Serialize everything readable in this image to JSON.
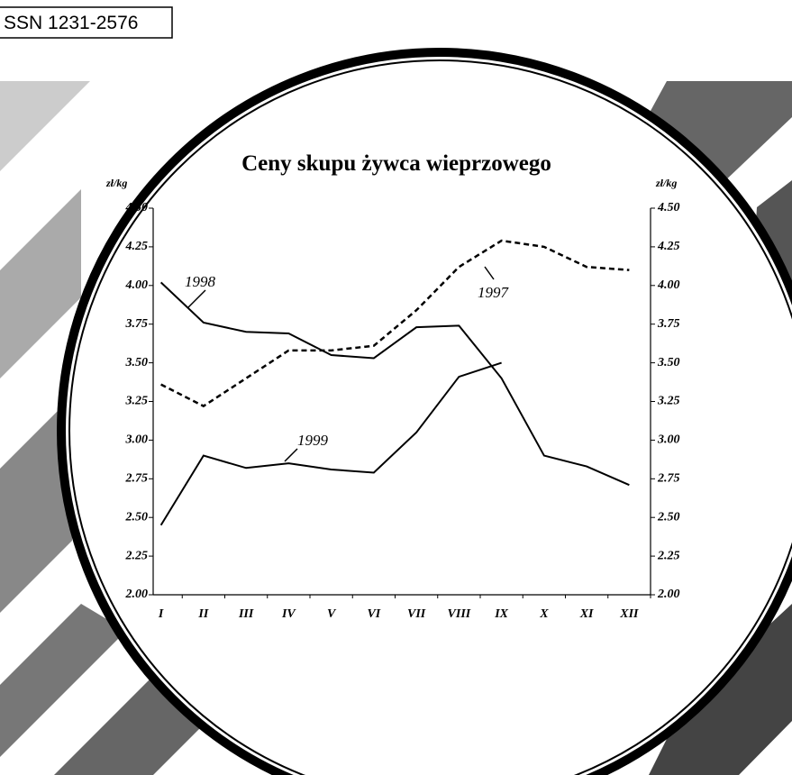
{
  "issn": "SSN 1231-2576",
  "chart_data": {
    "type": "line",
    "title": "Ceny skupu żywca wieprzowego",
    "y_label": "zł/kg",
    "y2_label": "zł/kg",
    "categories": [
      "I",
      "II",
      "III",
      "IV",
      "V",
      "VI",
      "VII",
      "VIII",
      "IX",
      "X",
      "XI",
      "XII"
    ],
    "series": [
      {
        "name": "1998",
        "color": "#000000",
        "dash": "solid",
        "values": [
          4.02,
          3.76,
          3.7,
          3.69,
          3.55,
          3.53,
          3.73,
          3.74,
          3.4,
          2.9,
          2.83,
          2.71
        ]
      },
      {
        "name": "1997",
        "color": "#000000",
        "dash": "dashed",
        "values": [
          3.36,
          3.22,
          3.4,
          3.58,
          3.58,
          3.61,
          3.84,
          4.12,
          4.29,
          4.25,
          4.12,
          4.1
        ]
      },
      {
        "name": "1999",
        "color": "#000000",
        "dash": "solid",
        "values": [
          2.45,
          2.9,
          2.82,
          2.85,
          2.81,
          2.79,
          3.05,
          3.41,
          3.5,
          null,
          null,
          null
        ]
      }
    ],
    "ylim": [
      2.0,
      4.5
    ],
    "yticks": [
      {
        "value": 2.0,
        "label": "2.00"
      },
      {
        "value": 2.25,
        "label": "2.25"
      },
      {
        "value": 2.5,
        "label": "2.50"
      },
      {
        "value": 2.75,
        "label": "2.75"
      },
      {
        "value": 3.0,
        "label": "3.00"
      },
      {
        "value": 3.25,
        "label": "3.25"
      },
      {
        "value": 3.5,
        "label": "3.50"
      },
      {
        "value": 3.75,
        "label": "3.75"
      },
      {
        "value": 4.0,
        "label": "4.00"
      },
      {
        "value": 4.25,
        "label": "4.25"
      },
      {
        "value": 4.5,
        "label": "4.50"
      }
    ],
    "y2lim": [
      2.0,
      4.5
    ],
    "y2ticks": [
      {
        "value": 2.0,
        "label": "2.00"
      },
      {
        "value": 2.25,
        "label": "2.25"
      },
      {
        "value": 2.5,
        "label": "2.50"
      },
      {
        "value": 2.75,
        "label": "2.75"
      },
      {
        "value": 3.0,
        "label": "3.00"
      },
      {
        "value": 3.25,
        "label": "3.25"
      },
      {
        "value": 3.5,
        "label": "3.50"
      },
      {
        "value": 3.75,
        "label": "3.75"
      },
      {
        "value": 4.0,
        "label": "4.00"
      },
      {
        "value": 4.25,
        "label": "4.25"
      },
      {
        "value": 4.5,
        "label": "4.50"
      }
    ]
  }
}
